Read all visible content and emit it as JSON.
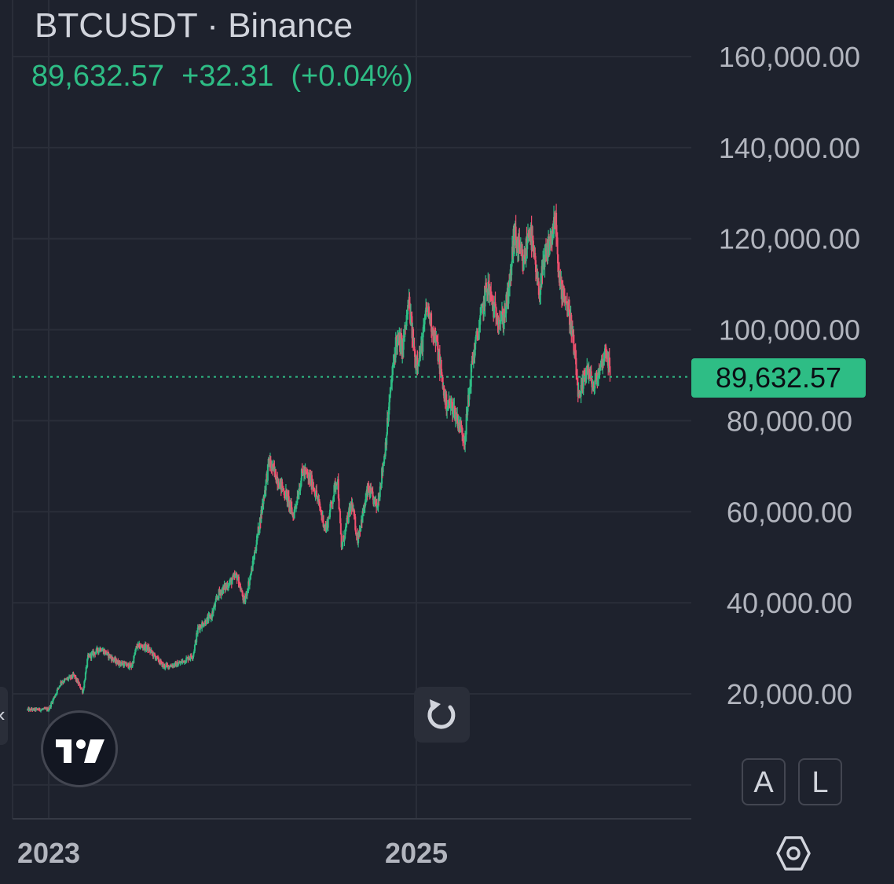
{
  "header": {
    "symbol_title": "BTCUSDT · Binance",
    "last_price": "89,632.57",
    "change": "+32.31",
    "change_percent": "(+0.04%)"
  },
  "price_tag": "89,632.57",
  "controls": {
    "auto_scale_label": "A",
    "log_scale_label": "L",
    "left_arrow": "‹"
  },
  "colors": {
    "background": "#1e222d",
    "up": "#2ebd85",
    "down": "#f0506e",
    "grid": "#2a2e39",
    "text": "#b2b5be"
  },
  "icons": [
    "tradingview-logo-icon",
    "reset-icon",
    "chevron-left-icon",
    "settings-hexagon-icon"
  ],
  "chart_data": {
    "type": "candlestick",
    "title": "BTCUSDT · Binance",
    "last_value": 89632.57,
    "y_axis": {
      "range": [
        8000,
        166000
      ],
      "ticks": [
        20000,
        40000,
        60000,
        80000,
        100000,
        120000,
        140000,
        160000
      ],
      "tick_labels": [
        "20,000.00",
        "40,000.00",
        "60,000.00",
        "80,000.00",
        "100,000.00",
        "120,000.00",
        "140,000.00",
        "160,000.00"
      ]
    },
    "x_axis": {
      "range": [
        "2022-11-20",
        "2026-02-15"
      ],
      "ticks": [
        "2023-01-01",
        "2025-01-01"
      ],
      "tick_labels": [
        "2023",
        "2025"
      ]
    },
    "grid": true,
    "price_series": {
      "dates": [
        "2022-11-20",
        "2023-01-01",
        "2023-01-25",
        "2023-02-20",
        "2023-03-10",
        "2023-03-20",
        "2023-04-14",
        "2023-05-15",
        "2023-06-15",
        "2023-06-25",
        "2023-07-15",
        "2023-08-18",
        "2023-09-15",
        "2023-10-15",
        "2023-10-25",
        "2023-11-20",
        "2023-12-05",
        "2024-01-10",
        "2024-01-25",
        "2024-02-10",
        "2024-02-28",
        "2024-03-14",
        "2024-04-01",
        "2024-04-20",
        "2024-05-01",
        "2024-05-20",
        "2024-06-10",
        "2024-07-05",
        "2024-07-28",
        "2024-08-05",
        "2024-08-25",
        "2024-09-06",
        "2024-09-27",
        "2024-10-15",
        "2024-10-29",
        "2024-11-12",
        "2024-11-22",
        "2024-12-05",
        "2024-12-17",
        "2024-12-30",
        "2025-01-10",
        "2025-01-22",
        "2025-02-10",
        "2025-02-28",
        "2025-03-15",
        "2025-04-07",
        "2025-04-22",
        "2025-05-10",
        "2025-05-22",
        "2025-06-05",
        "2025-06-22",
        "2025-07-05",
        "2025-07-14",
        "2025-08-02",
        "2025-08-14",
        "2025-09-01",
        "2025-09-15",
        "2025-10-06",
        "2025-10-10",
        "2025-10-22",
        "2025-11-05",
        "2025-11-21",
        "2025-12-05",
        "2025-12-20",
        "2026-01-05",
        "2026-01-14",
        "2026-01-22"
      ],
      "values": [
        16500,
        16600,
        22500,
        24000,
        20500,
        28000,
        30000,
        27000,
        26000,
        30500,
        30200,
        26000,
        26500,
        28500,
        34500,
        37000,
        42000,
        46000,
        40000,
        48000,
        60000,
        71000,
        67000,
        63000,
        59000,
        69000,
        66000,
        56000,
        68000,
        52000,
        62000,
        54000,
        65000,
        61000,
        72000,
        88000,
        98000,
        96000,
        106000,
        93000,
        95000,
        105000,
        97000,
        84000,
        83000,
        76000,
        93000,
        103000,
        110000,
        104000,
        102000,
        109000,
        121000,
        114000,
        123000,
        108000,
        116000,
        124000,
        111000,
        108000,
        101000,
        84000,
        92000,
        87000,
        93000,
        96000,
        89632.57
      ]
    },
    "series": [
      {
        "name": "BTCUSDT",
        "kind": "candles"
      }
    ]
  }
}
